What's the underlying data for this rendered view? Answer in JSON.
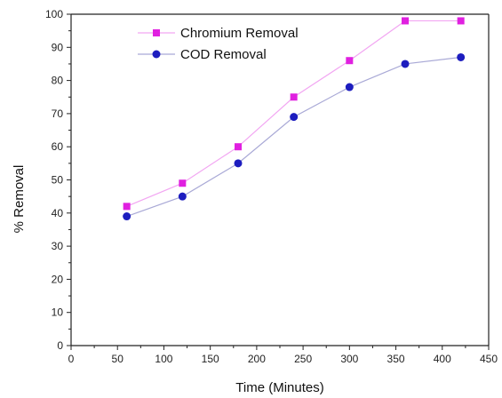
{
  "chart_data": {
    "type": "line",
    "title": "",
    "xlabel": "Time (Minutes)",
    "ylabel": "% Removal",
    "xlim": [
      0,
      450
    ],
    "ylim": [
      0,
      100
    ],
    "x_ticks": [
      0,
      50,
      100,
      150,
      200,
      250,
      300,
      350,
      400,
      450
    ],
    "y_ticks": [
      0,
      10,
      20,
      30,
      40,
      50,
      60,
      70,
      80,
      90,
      100
    ],
    "x": [
      60,
      120,
      180,
      240,
      300,
      360,
      420
    ],
    "series": [
      {
        "name": "Chromium Removal",
        "values": [
          42,
          49,
          60,
          75,
          86,
          98,
          98
        ],
        "color": "#e020e0",
        "marker": "square"
      },
      {
        "name": "COD Removal",
        "values": [
          39,
          45,
          55,
          69,
          78,
          85,
          87
        ],
        "color": "#1d1dbf",
        "marker": "circle"
      }
    ],
    "grid": false,
    "legend_position": "top-center"
  }
}
